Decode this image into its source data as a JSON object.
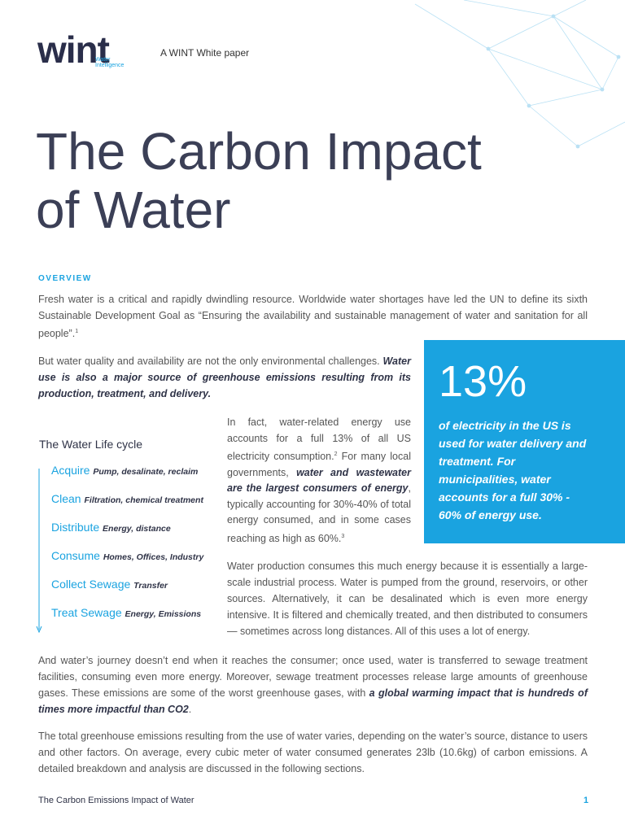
{
  "header": {
    "logo": "wint",
    "logo_sub": [
      "Water",
      "Intelligence"
    ],
    "tagline": "A WINT White paper"
  },
  "title": [
    "The Carbon Impact",
    "of Water"
  ],
  "section_label": "OVERVIEW",
  "paragraphs": [
    {
      "runs": [
        {
          "text": "Fresh water is a critical and rapidly dwindling resource. Worldwide water shortages have led the UN to define its sixth Sustainable Development Goal as “Ensuring the availability and sustainable management of water and sanitation for all people”.",
          "style": "normal"
        },
        {
          "text": "1",
          "style": "sup"
        }
      ]
    },
    {
      "runs": [
        {
          "text": "But water quality and availability are not the only environmental challenges. ",
          "style": "normal"
        },
        {
          "text": "Water use is also a major source of greenhouse emissions resulting from its production, treatment, and delivery.",
          "style": "emph"
        }
      ]
    },
    {
      "runs": [
        {
          "text": "In fact, water-related energy use accounts for a full 13% of all US electricity consumption.",
          "style": "normal"
        },
        {
          "text": "2",
          "style": "sup"
        },
        {
          "text": " For many local governments, ",
          "style": "normal"
        },
        {
          "text": "water and wastewater are the largest consumers of energy",
          "style": "emph"
        },
        {
          "text": ", typically accounting for 30%-40% of total energy consumed, and in some cases reaching as high as 60%.",
          "style": "normal"
        },
        {
          "text": "3",
          "style": "sup"
        }
      ]
    },
    {
      "runs": [
        {
          "text": "Water production consumes this much energy because it is essentially a large-scale industrial process. Water is pumped from the ground, reservoirs, or other sources. Alternatively, it can be desalinated which is even more energy intensive. It is filtered and chemically treated, and then distributed to consumers — sometimes across long distances. All of this uses a lot of energy.",
          "style": "normal"
        }
      ]
    },
    {
      "runs": [
        {
          "text": "And water’s journey doesn’t end when it reaches the consumer; once used, water is transferred to sewage treatment facilities, consuming even more energy. Moreover, sewage treatment processes release large amounts of greenhouse gases. These emissions are some of the worst greenhouse gases, with ",
          "style": "normal"
        },
        {
          "text": "a global warming impact that is hundreds of times more impactful than CO2",
          "style": "emph"
        },
        {
          "text": ".",
          "style": "normal"
        }
      ]
    },
    {
      "runs": [
        {
          "text": "The total greenhouse emissions resulting from the use of water varies, depending on the water’s source, distance to users and other factors. On average, every cubic meter of water consumed generates 23lb (10.6kg) of carbon emissions. A detailed breakdown and analysis are discussed in the following sections.",
          "style": "normal"
        }
      ]
    }
  ],
  "life_cycle": {
    "heading": "The Water Life cycle",
    "items": [
      {
        "name": "Acquire",
        "detail": "Pump, desalinate, reclaim"
      },
      {
        "name": "Clean",
        "detail": "Filtration, chemical treatment"
      },
      {
        "name": "Distribute",
        "detail": "Energy, distance"
      },
      {
        "name": "Consume",
        "detail": "Homes, Offices, Industry"
      },
      {
        "name": "Collect Sewage",
        "detail": "Transfer"
      },
      {
        "name": "Treat Sewage",
        "detail": "Energy, Emissions"
      }
    ]
  },
  "callout": {
    "stat": "13%",
    "text": "of electricity in the US is used for water delivery and treatment. For municipalities, water accounts for a full 30% - 60% of energy use."
  },
  "footer": {
    "title": "The Carbon Emissions Impact of Water",
    "page": "1"
  }
}
